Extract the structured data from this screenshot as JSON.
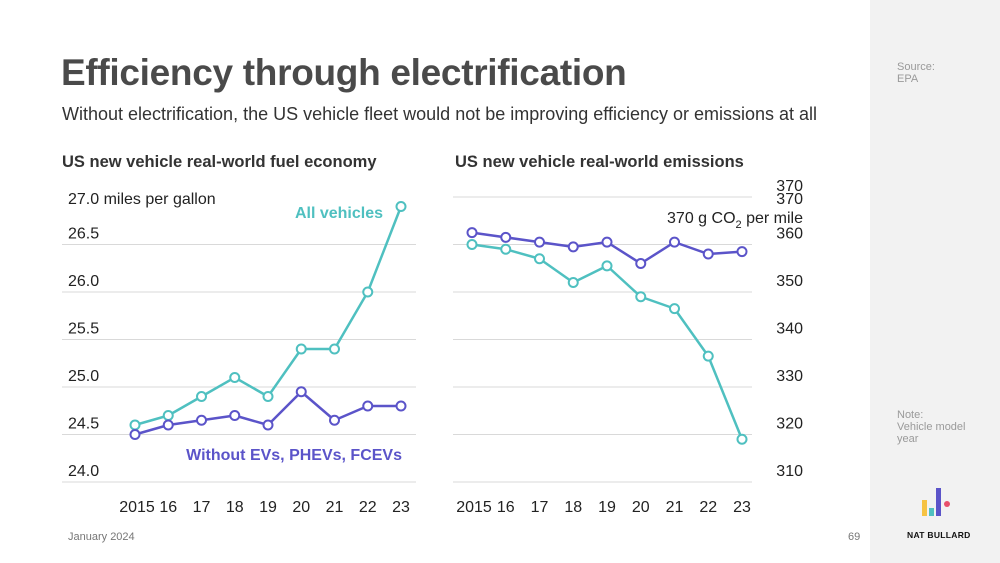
{
  "header": {
    "title": "Efficiency through electrification",
    "subtitle": "Without electrification, the US vehicle fleet would not be improving efficiency or emissions at all"
  },
  "sidebar": {
    "source_label": "Source:",
    "source_value": "EPA",
    "note_label": "Note:",
    "note_value": "Vehicle model year",
    "brand": "NAT BULLARD"
  },
  "footer": {
    "date": "January 2024",
    "page": "69"
  },
  "colors": {
    "all_vehicles": "#4fc0c0",
    "without_evs": "#5b54c9",
    "grid": "#d9d9d9"
  },
  "chart_data": [
    {
      "type": "line",
      "title": "US new vehicle real-world fuel economy",
      "unit_label": "27.0 miles per gallon",
      "categories": [
        "2015",
        "16",
        "17",
        "18",
        "19",
        "20",
        "21",
        "22",
        "23"
      ],
      "ylim": [
        24.0,
        27.0
      ],
      "yticks": [
        "24.0",
        "24.5",
        "25.0",
        "25.5",
        "26.0",
        "26.5"
      ],
      "series": [
        {
          "name": "All vehicles",
          "values": [
            24.6,
            24.7,
            24.9,
            25.1,
            24.9,
            25.4,
            25.4,
            26.0,
            26.9
          ]
        },
        {
          "name": "Without EVs, PHEVs, FCEVs",
          "values": [
            24.5,
            24.6,
            24.65,
            24.7,
            24.6,
            24.95,
            24.65,
            24.8,
            24.8
          ]
        }
      ]
    },
    {
      "type": "line",
      "title": "US new vehicle real-world emissions",
      "unit_label": "370 g CO2 per mile",
      "categories": [
        "2015",
        "16",
        "17",
        "18",
        "19",
        "20",
        "21",
        "22",
        "23"
      ],
      "ylim": [
        310,
        370
      ],
      "yticks": [
        "310",
        "320",
        "330",
        "340",
        "350",
        "360",
        "370"
      ],
      "series": [
        {
          "name": "All vehicles",
          "values": [
            360,
            359,
            357,
            352,
            355.5,
            349,
            346.5,
            336.5,
            319
          ]
        },
        {
          "name": "Without EVs, PHEVs, FCEVs",
          "values": [
            362.5,
            361.5,
            360.5,
            359.5,
            360.5,
            356,
            360.5,
            358,
            358.5
          ]
        }
      ]
    }
  ]
}
